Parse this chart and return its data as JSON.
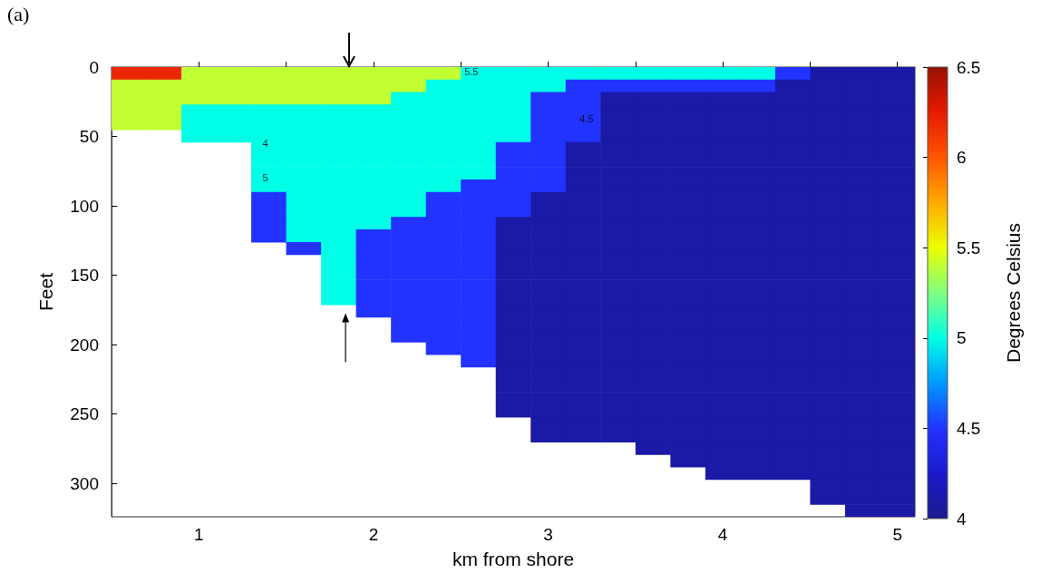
{
  "chart_data": {
    "type": "heatmap",
    "xlabel": "km from shore",
    "ylabel": "Feet",
    "clabel": "Degrees Celsius",
    "xlim": [
      0.5,
      5.1
    ],
    "xticks": [
      1,
      {
        "value": 1.5,
        "label": null
      },
      2,
      {
        "value": 2.5,
        "label": null
      },
      3,
      {
        "value": 3.5,
        "label": null
      },
      4,
      {
        "value": 4.5,
        "label": null
      },
      5
    ],
    "ylim": [
      324,
      0
    ],
    "yticks": [
      0,
      50,
      100,
      150,
      200,
      250,
      300
    ],
    "clim": [
      4,
      6.5
    ],
    "cticks": [
      4,
      4.5,
      5,
      5.5,
      6,
      6.5
    ],
    "annotations": [
      "(a)",
      "4.5",
      "4",
      "5",
      "5.5"
    ],
    "x": [
      0.6,
      0.8,
      1.0,
      1.2,
      1.4,
      1.6,
      1.8,
      2.0,
      2.2,
      2.4,
      2.6,
      2.8,
      3.0,
      3.2,
      3.4,
      3.6,
      3.8,
      4.0,
      4.2,
      4.4,
      4.6,
      4.8,
      5.0
    ],
    "y": [
      4.5,
      13.5,
      22.5,
      31.5,
      40.5,
      49.5,
      58.5,
      67.5,
      76.5,
      85.5,
      94.5,
      103.5,
      112.5,
      121.5,
      130.5,
      139.5,
      148.5,
      157.5,
      166.5,
      175.5,
      184.5,
      193.5,
      202.5,
      211.5,
      220.5,
      229.5,
      238.5,
      247.5,
      256.5,
      265.5,
      274.5,
      283.5,
      292.5,
      301.5,
      310.5,
      319.5
    ],
    "cells": [
      [
        6.2,
        6.2,
        5.4,
        5.4,
        5.4,
        5.4,
        5.4,
        5.4,
        5.4,
        5.4,
        5,
        5,
        5,
        5,
        5,
        5,
        5,
        5,
        5,
        4.5,
        4.1,
        4.1,
        4.1
      ],
      [
        5.4,
        5.4,
        5.4,
        5.4,
        5.4,
        5.4,
        5.4,
        5.4,
        5.4,
        5,
        5,
        5,
        5,
        4.5,
        4.5,
        4.5,
        4.5,
        4.5,
        4.5,
        4.1,
        4.1,
        4.1,
        4.1
      ],
      [
        5.4,
        5.4,
        5.4,
        5.4,
        5.4,
        5.4,
        5.4,
        5.4,
        5,
        5,
        5,
        5,
        4.5,
        4.5,
        4.1,
        4.1,
        4.1,
        4.1,
        4.1,
        4.1,
        4.1,
        4.1,
        4.1
      ],
      [
        5.4,
        5.4,
        5,
        5,
        5,
        5,
        5,
        5,
        5,
        5,
        5,
        5,
        4.5,
        4.5,
        4.1,
        4.1,
        4.1,
        4.1,
        4.1,
        4.1,
        4.1,
        4.1,
        4.1
      ],
      [
        5.4,
        5.4,
        5,
        5,
        5,
        5,
        5,
        5,
        5,
        5,
        5,
        5,
        4.5,
        4.5,
        4.1,
        4.1,
        4.1,
        4.1,
        4.1,
        4.1,
        4.1,
        4.1,
        4.1
      ],
      [
        null,
        null,
        5,
        5,
        5,
        5,
        5,
        5,
        5,
        5,
        5,
        5,
        4.5,
        4.5,
        4.1,
        4.1,
        4.1,
        4.1,
        4.1,
        4.1,
        4.1,
        4.1,
        4.1
      ],
      [
        null,
        null,
        null,
        null,
        5,
        5,
        5,
        5,
        5,
        5,
        5,
        4.5,
        4.5,
        4.1,
        4.1,
        4.1,
        4.1,
        4.1,
        4.1,
        4.1,
        4.1,
        4.1,
        4.1
      ],
      [
        null,
        null,
        null,
        null,
        5,
        5,
        5,
        5,
        5,
        5,
        5,
        4.5,
        4.5,
        4.1,
        4.1,
        4.1,
        4.1,
        4.1,
        4.1,
        4.1,
        4.1,
        4.1,
        4.1
      ],
      [
        null,
        null,
        null,
        null,
        5,
        5,
        5,
        5,
        5,
        5,
        5,
        4.5,
        4.5,
        4.1,
        4.1,
        4.1,
        4.1,
        4.1,
        4.1,
        4.1,
        4.1,
        4.1,
        4.1
      ],
      [
        null,
        null,
        null,
        null,
        5,
        5,
        5,
        5,
        5,
        5,
        4.5,
        4.5,
        4.5,
        4.1,
        4.1,
        4.1,
        4.1,
        4.1,
        4.1,
        4.1,
        4.1,
        4.1,
        4.1
      ],
      [
        null,
        null,
        null,
        null,
        4.5,
        5,
        5,
        5,
        5,
        4.5,
        4.5,
        4.5,
        4.1,
        4.1,
        4.1,
        4.1,
        4.1,
        4.1,
        4.1,
        4.1,
        4.1,
        4.1,
        4.1
      ],
      [
        null,
        null,
        null,
        null,
        4.5,
        5,
        5,
        5,
        5,
        4.5,
        4.5,
        4.5,
        4.1,
        4.1,
        4.1,
        4.1,
        4.1,
        4.1,
        4.1,
        4.1,
        4.1,
        4.1,
        4.1
      ],
      [
        null,
        null,
        null,
        null,
        4.5,
        5,
        5,
        5,
        4.5,
        4.5,
        4.5,
        4.1,
        4.1,
        4.1,
        4.1,
        4.1,
        4.1,
        4.1,
        4.1,
        4.1,
        4.1,
        4.1,
        4.1
      ],
      [
        null,
        null,
        null,
        null,
        4.5,
        5,
        5,
        4.5,
        4.5,
        4.5,
        4.5,
        4.1,
        4.1,
        4.1,
        4.1,
        4.1,
        4.1,
        4.1,
        4.1,
        4.1,
        4.1,
        4.1,
        4.1
      ],
      [
        null,
        null,
        null,
        null,
        null,
        4.5,
        5,
        4.5,
        4.5,
        4.5,
        4.5,
        4.1,
        4.1,
        4.1,
        4.1,
        4.1,
        4.1,
        4.1,
        4.1,
        4.1,
        4.1,
        4.1,
        4.1
      ],
      [
        null,
        null,
        null,
        null,
        null,
        null,
        5,
        4.5,
        4.5,
        4.5,
        4.5,
        4.1,
        4.1,
        4.1,
        4.1,
        4.1,
        4.1,
        4.1,
        4.1,
        4.1,
        4.1,
        4.1,
        4.1
      ],
      [
        null,
        null,
        null,
        null,
        null,
        null,
        5,
        4.5,
        4.5,
        4.5,
        4.5,
        4.1,
        4.1,
        4.1,
        4.1,
        4.1,
        4.1,
        4.1,
        4.1,
        4.1,
        4.1,
        4.1,
        4.1
      ],
      [
        null,
        null,
        null,
        null,
        null,
        null,
        5,
        4.5,
        4.5,
        4.5,
        4.5,
        4.1,
        4.1,
        4.1,
        4.1,
        4.1,
        4.1,
        4.1,
        4.1,
        4.1,
        4.1,
        4.1,
        4.1
      ],
      [
        null,
        null,
        null,
        null,
        null,
        null,
        5,
        4.5,
        4.5,
        4.5,
        4.5,
        4.1,
        4.1,
        4.1,
        4.1,
        4.1,
        4.1,
        4.1,
        4.1,
        4.1,
        4.1,
        4.1,
        4.1
      ],
      [
        null,
        null,
        null,
        null,
        null,
        null,
        null,
        4.5,
        4.5,
        4.5,
        4.5,
        4.1,
        4.1,
        4.1,
        4.1,
        4.1,
        4.1,
        4.1,
        4.1,
        4.1,
        4.1,
        4.1,
        4.1
      ],
      [
        null,
        null,
        null,
        null,
        null,
        null,
        null,
        null,
        4.5,
        4.5,
        4.5,
        4.1,
        4.1,
        4.1,
        4.1,
        4.1,
        4.1,
        4.1,
        4.1,
        4.1,
        4.1,
        4.1,
        4.1
      ],
      [
        null,
        null,
        null,
        null,
        null,
        null,
        null,
        null,
        4.5,
        4.5,
        4.5,
        4.1,
        4.1,
        4.1,
        4.1,
        4.1,
        4.1,
        4.1,
        4.1,
        4.1,
        4.1,
        4.1,
        4.1
      ],
      [
        null,
        null,
        null,
        null,
        null,
        null,
        null,
        null,
        null,
        4.5,
        4.5,
        4.1,
        4.1,
        4.1,
        4.1,
        4.1,
        4.1,
        4.1,
        4.1,
        4.1,
        4.1,
        4.1,
        4.1
      ],
      [
        null,
        null,
        null,
        null,
        null,
        null,
        null,
        null,
        null,
        null,
        4.5,
        4.1,
        4.1,
        4.1,
        4.1,
        4.1,
        4.1,
        4.1,
        4.1,
        4.1,
        4.1,
        4.1,
        4.1
      ],
      [
        null,
        null,
        null,
        null,
        null,
        null,
        null,
        null,
        null,
        null,
        null,
        4.1,
        4.1,
        4.1,
        4.1,
        4.1,
        4.1,
        4.1,
        4.1,
        4.1,
        4.1,
        4.1,
        4.1
      ],
      [
        null,
        null,
        null,
        null,
        null,
        null,
        null,
        null,
        null,
        null,
        null,
        4.1,
        4.1,
        4.1,
        4.1,
        4.1,
        4.1,
        4.1,
        4.1,
        4.1,
        4.1,
        4.1,
        4.1
      ],
      [
        null,
        null,
        null,
        null,
        null,
        null,
        null,
        null,
        null,
        null,
        null,
        4.1,
        4.1,
        4.1,
        4.1,
        4.1,
        4.1,
        4.1,
        4.1,
        4.1,
        4.1,
        4.1,
        4.1
      ],
      [
        null,
        null,
        null,
        null,
        null,
        null,
        null,
        null,
        null,
        null,
        null,
        4.1,
        4.1,
        4.1,
        4.1,
        4.1,
        4.1,
        4.1,
        4.1,
        4.1,
        4.1,
        4.1,
        4.1
      ],
      [
        null,
        null,
        null,
        null,
        null,
        null,
        null,
        null,
        null,
        null,
        null,
        null,
        4.1,
        4.1,
        4.1,
        4.1,
        4.1,
        4.1,
        4.1,
        4.1,
        4.1,
        4.1,
        4.1
      ],
      [
        null,
        null,
        null,
        null,
        null,
        null,
        null,
        null,
        null,
        null,
        null,
        null,
        4.1,
        4.1,
        4.1,
        4.1,
        4.1,
        4.1,
        4.1,
        4.1,
        4.1,
        4.1,
        4.1
      ],
      [
        null,
        null,
        null,
        null,
        null,
        null,
        null,
        null,
        null,
        null,
        null,
        null,
        null,
        null,
        null,
        4.1,
        4.1,
        4.1,
        4.1,
        4.1,
        4.1,
        4.1,
        4.1
      ],
      [
        null,
        null,
        null,
        null,
        null,
        null,
        null,
        null,
        null,
        null,
        null,
        null,
        null,
        null,
        null,
        null,
        4.1,
        4.1,
        4.1,
        4.1,
        4.1,
        4.1,
        4.1
      ],
      [
        null,
        null,
        null,
        null,
        null,
        null,
        null,
        null,
        null,
        null,
        null,
        null,
        null,
        null,
        null,
        null,
        null,
        4.1,
        4.1,
        4.1,
        4.1,
        4.1,
        4.1
      ],
      [
        null,
        null,
        null,
        null,
        null,
        null,
        null,
        null,
        null,
        null,
        null,
        null,
        null,
        null,
        null,
        null,
        null,
        null,
        null,
        null,
        4.1,
        4.1,
        4.1
      ],
      [
        null,
        null,
        null,
        null,
        null,
        null,
        null,
        null,
        null,
        null,
        null,
        null,
        null,
        null,
        null,
        null,
        null,
        null,
        null,
        null,
        4.1,
        4.1,
        4.1
      ],
      [
        null,
        null,
        null,
        null,
        null,
        null,
        null,
        null,
        null,
        null,
        null,
        null,
        null,
        null,
        null,
        null,
        null,
        null,
        null,
        null,
        null,
        4.1,
        4.1
      ]
    ]
  }
}
